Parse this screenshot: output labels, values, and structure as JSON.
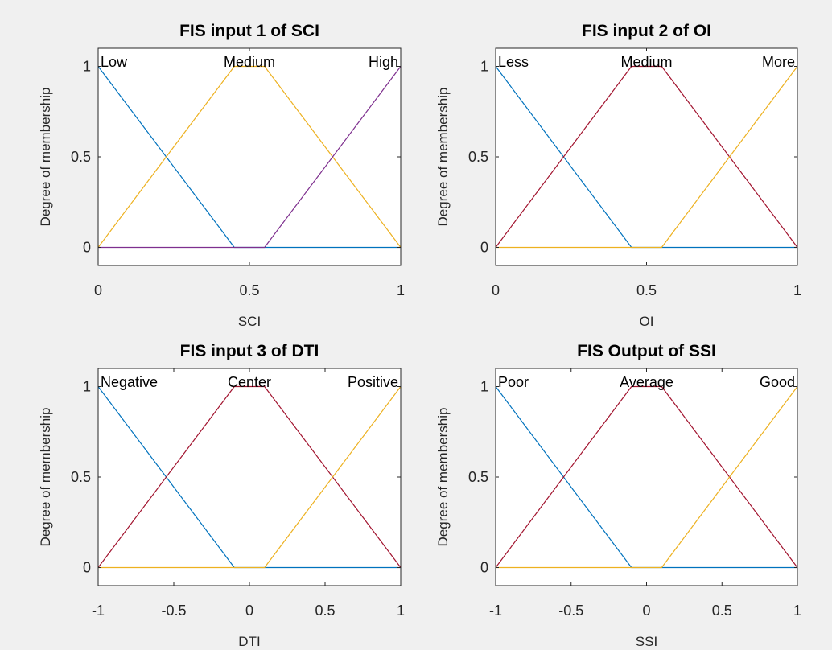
{
  "chart_data": [
    {
      "type": "line",
      "title": "FIS input 1 of SCI",
      "xlabel": "SCI",
      "ylabel": "Degree of membership",
      "xlim": [
        0,
        1
      ],
      "ylim": [
        -0.1,
        1.1
      ],
      "xticks": [
        "0",
        "0.5",
        "1"
      ],
      "yticks": [
        "0",
        "0.5",
        "1"
      ],
      "grid": false,
      "series": [
        {
          "name": "Low",
          "color": "#0072bd",
          "x": [
            0,
            0.45,
            1
          ],
          "y": [
            1,
            0,
            0
          ]
        },
        {
          "name": "Medium",
          "color": "#edb120",
          "x": [
            0,
            0.45,
            0.55,
            1
          ],
          "y": [
            0,
            1,
            1,
            0
          ]
        },
        {
          "name": "High",
          "color": "#7e2f8e",
          "x": [
            0,
            0.55,
            1
          ],
          "y": [
            0,
            0,
            1
          ]
        }
      ]
    },
    {
      "type": "line",
      "title": "FIS input 2 of OI",
      "xlabel": "OI",
      "ylabel": "Degree of membership",
      "xlim": [
        0,
        1
      ],
      "ylim": [
        -0.1,
        1.1
      ],
      "xticks": [
        "0",
        "0.5",
        "1"
      ],
      "yticks": [
        "0",
        "0.5",
        "1"
      ],
      "grid": false,
      "series": [
        {
          "name": "Less",
          "color": "#0072bd",
          "x": [
            0,
            0.45,
            1
          ],
          "y": [
            1,
            0,
            0
          ]
        },
        {
          "name": "Medium",
          "color": "#a2142f",
          "x": [
            0,
            0.45,
            0.55,
            1
          ],
          "y": [
            0,
            1,
            1,
            0
          ]
        },
        {
          "name": "More",
          "color": "#edb120",
          "x": [
            0,
            0.55,
            1
          ],
          "y": [
            0,
            0,
            1
          ]
        }
      ]
    },
    {
      "type": "line",
      "title": "FIS input 3 of DTI",
      "xlabel": "DTI",
      "ylabel": "Degree of membership",
      "xlim": [
        -1,
        1
      ],
      "ylim": [
        -0.1,
        1.1
      ],
      "xticks": [
        "-1",
        "-0.5",
        "0",
        "0.5",
        "1"
      ],
      "yticks": [
        "0",
        "0.5",
        "1"
      ],
      "grid": false,
      "series": [
        {
          "name": "Negative",
          "color": "#0072bd",
          "x": [
            -1,
            -0.1,
            1
          ],
          "y": [
            1,
            0,
            0
          ]
        },
        {
          "name": "Center",
          "color": "#a2142f",
          "x": [
            -1,
            -0.1,
            0.1,
            1
          ],
          "y": [
            0,
            1,
            1,
            0
          ]
        },
        {
          "name": "Positive",
          "color": "#edb120",
          "x": [
            -1,
            0.1,
            1
          ],
          "y": [
            0,
            0,
            1
          ]
        }
      ]
    },
    {
      "type": "line",
      "title": "FIS Output of SSI",
      "xlabel": "SSI",
      "ylabel": "Degree of membership",
      "xlim": [
        -1,
        1
      ],
      "ylim": [
        -0.1,
        1.1
      ],
      "xticks": [
        "-1",
        "-0.5",
        "0",
        "0.5",
        "1"
      ],
      "yticks": [
        "0",
        "0.5",
        "1"
      ],
      "grid": false,
      "series": [
        {
          "name": "Poor",
          "color": "#0072bd",
          "x": [
            -1,
            -0.1,
            1
          ],
          "y": [
            1,
            0,
            0
          ]
        },
        {
          "name": "Average",
          "color": "#a2142f",
          "x": [
            -1,
            -0.1,
            0.1,
            1
          ],
          "y": [
            0,
            1,
            1,
            0
          ]
        },
        {
          "name": "Good",
          "color": "#edb120",
          "x": [
            -1,
            0.1,
            1
          ],
          "y": [
            0,
            0,
            1
          ]
        }
      ]
    }
  ]
}
